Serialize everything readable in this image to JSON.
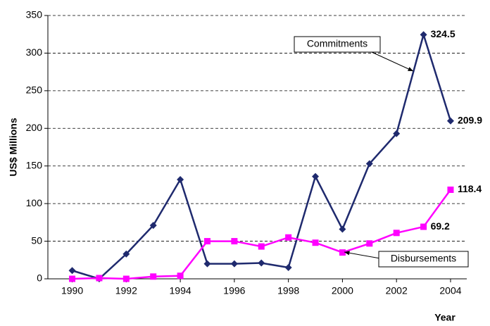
{
  "chart_data": {
    "type": "line",
    "y_label": "US$ Millions",
    "x_label": "Year",
    "x": [
      1990,
      1991,
      1992,
      1993,
      1994,
      1995,
      1996,
      1997,
      1998,
      1999,
      2000,
      2001,
      2002,
      2003,
      2004
    ],
    "xlim": [
      1989.1,
      2004.6
    ],
    "xticks": [
      1990,
      1992,
      1994,
      1996,
      1998,
      2000,
      2002,
      2004
    ],
    "ylim": [
      0,
      350
    ],
    "yticks": [
      0,
      50,
      100,
      150,
      200,
      250,
      300,
      350
    ],
    "grid": true,
    "series": [
      {
        "name": "Commitments",
        "color": "#1f2a6e",
        "marker": "diamond",
        "values": [
          11,
          0,
          33,
          71,
          132,
          20,
          20,
          21,
          15,
          136,
          66,
          153,
          193,
          324.5,
          209.9
        ],
        "value_labels": [
          null,
          null,
          null,
          null,
          null,
          null,
          null,
          null,
          null,
          null,
          null,
          null,
          null,
          "324.5",
          "209.9"
        ]
      },
      {
        "name": "Disbursements",
        "color": "#ff00ff",
        "marker": "square",
        "values": [
          0,
          1,
          0,
          3,
          4,
          50,
          50,
          43,
          55,
          48,
          35,
          47,
          61,
          69.2,
          118.4
        ],
        "value_labels": [
          null,
          null,
          null,
          null,
          null,
          null,
          null,
          null,
          null,
          null,
          null,
          null,
          null,
          "69.2",
          "118.4"
        ]
      }
    ]
  }
}
